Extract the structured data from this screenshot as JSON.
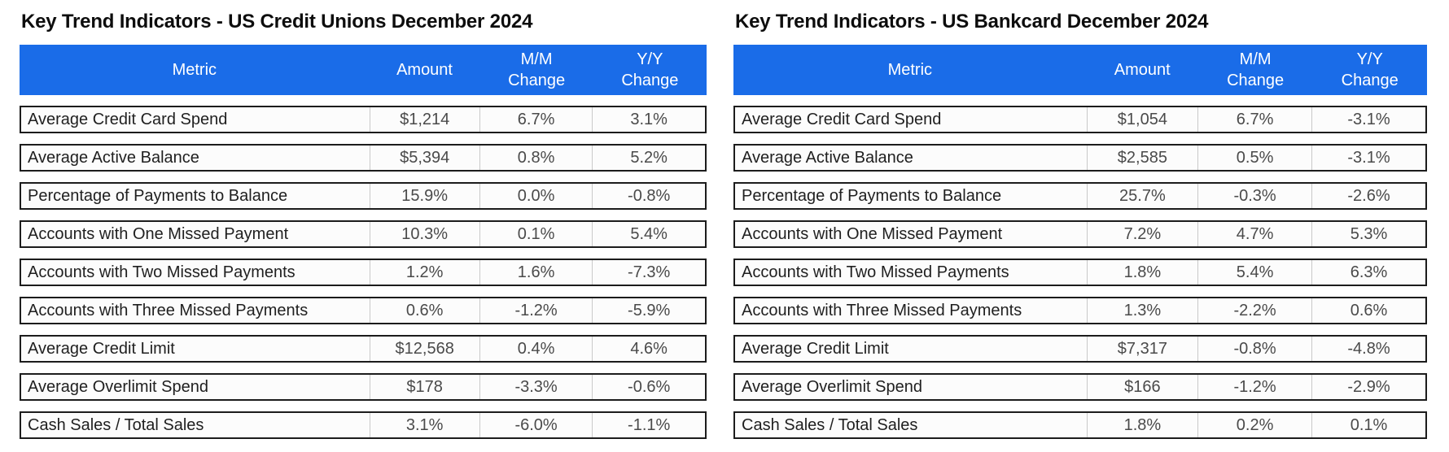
{
  "colors": {
    "header_bg": "#1a6ce8",
    "header_text": "#ffffff",
    "row_border": "#1c1c1c",
    "metric_text": "#1f1f1f",
    "number_text": "#4a4a4a"
  },
  "chart_data": [
    {
      "type": "table",
      "title": "Key Trend Indicators - US Credit Unions December 2024",
      "columns": [
        {
          "line1": "Metric",
          "line2": ""
        },
        {
          "line1": "Amount",
          "line2": ""
        },
        {
          "line1": "M/M",
          "line2": "Change"
        },
        {
          "line1": "Y/Y",
          "line2": "Change"
        }
      ],
      "rows": [
        {
          "metric": "Average Credit Card Spend",
          "amount": "$1,214",
          "mm_change": "6.7%",
          "yy_change": "3.1%"
        },
        {
          "metric": "Average Active Balance",
          "amount": "$5,394",
          "mm_change": "0.8%",
          "yy_change": "5.2%"
        },
        {
          "metric": "Percentage of Payments to Balance",
          "amount": "15.9%",
          "mm_change": "0.0%",
          "yy_change": "-0.8%"
        },
        {
          "metric": "Accounts with One Missed Payment",
          "amount": "10.3%",
          "mm_change": "0.1%",
          "yy_change": "5.4%"
        },
        {
          "metric": "Accounts with Two Missed Payments",
          "amount": "1.2%",
          "mm_change": "1.6%",
          "yy_change": "-7.3%"
        },
        {
          "metric": "Accounts with Three Missed Payments",
          "amount": "0.6%",
          "mm_change": "-1.2%",
          "yy_change": "-5.9%"
        },
        {
          "metric": "Average Credit Limit",
          "amount": "$12,568",
          "mm_change": "0.4%",
          "yy_change": "4.6%"
        },
        {
          "metric": "Average Overlimit Spend",
          "amount": "$178",
          "mm_change": "-3.3%",
          "yy_change": "-0.6%"
        },
        {
          "metric": "Cash Sales / Total Sales",
          "amount": "3.1%",
          "mm_change": "-6.0%",
          "yy_change": "-1.1%"
        }
      ]
    },
    {
      "type": "table",
      "title": "Key Trend Indicators - US Bankcard December 2024",
      "columns": [
        {
          "line1": "Metric",
          "line2": ""
        },
        {
          "line1": "Amount",
          "line2": ""
        },
        {
          "line1": "M/M",
          "line2": "Change"
        },
        {
          "line1": "Y/Y",
          "line2": "Change"
        }
      ],
      "rows": [
        {
          "metric": "Average Credit Card Spend",
          "amount": "$1,054",
          "mm_change": "6.7%",
          "yy_change": "-3.1%"
        },
        {
          "metric": "Average Active Balance",
          "amount": "$2,585",
          "mm_change": "0.5%",
          "yy_change": "-3.1%"
        },
        {
          "metric": "Percentage of Payments to Balance",
          "amount": "25.7%",
          "mm_change": "-0.3%",
          "yy_change": "-2.6%"
        },
        {
          "metric": "Accounts with One Missed Payment",
          "amount": "7.2%",
          "mm_change": "4.7%",
          "yy_change": "5.3%"
        },
        {
          "metric": "Accounts with Two Missed Payments",
          "amount": "1.8%",
          "mm_change": "5.4%",
          "yy_change": "6.3%"
        },
        {
          "metric": "Accounts with Three Missed Payments",
          "amount": "1.3%",
          "mm_change": "-2.2%",
          "yy_change": "0.6%"
        },
        {
          "metric": "Average Credit Limit",
          "amount": "$7,317",
          "mm_change": "-0.8%",
          "yy_change": "-4.8%"
        },
        {
          "metric": "Average Overlimit Spend",
          "amount": "$166",
          "mm_change": "-1.2%",
          "yy_change": "-2.9%"
        },
        {
          "metric": "Cash Sales / Total Sales",
          "amount": "1.8%",
          "mm_change": "0.2%",
          "yy_change": "0.1%"
        }
      ]
    }
  ]
}
